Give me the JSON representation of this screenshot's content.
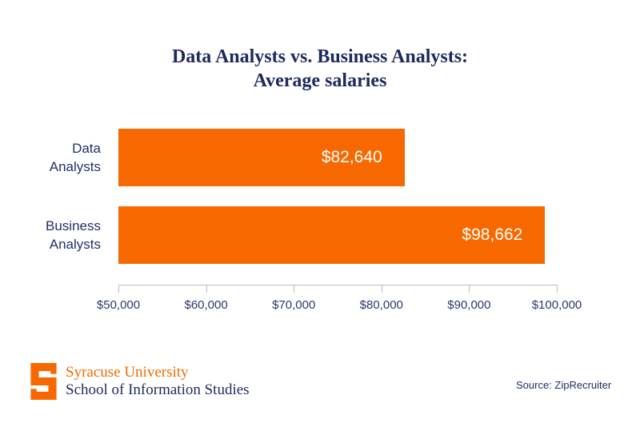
{
  "title": {
    "line1": "Data Analysts vs. Business Analysts:",
    "line2": "Average salaries"
  },
  "chart_data": {
    "type": "bar",
    "orientation": "horizontal",
    "title": "Data Analysts vs. Business Analysts: Average salaries",
    "categories": [
      "Data Analysts",
      "Business Analysts"
    ],
    "category_lines": [
      [
        "Data",
        "Analysts"
      ],
      [
        "Business",
        "Analysts"
      ]
    ],
    "values": [
      82640,
      98662
    ],
    "value_labels": [
      "$82,640",
      "$98,662"
    ],
    "xlabel": "",
    "ylabel": "",
    "xlim": [
      50000,
      100000
    ],
    "x_tick_labels": [
      "$50,000",
      "$60,000",
      "$70,000",
      "$80,000",
      "$90,000",
      "$100,000"
    ],
    "grid": false,
    "legend": false,
    "bar_color": "#f76900",
    "value_label_color": "#ffffff"
  },
  "footer": {
    "logo_letter": "S",
    "org_line1": "Syracuse University",
    "org_line2": "School of Information Studies",
    "source": "Source: ZipRecruiter"
  },
  "colors": {
    "orange": "#f76900",
    "navy": "#1e2a5e",
    "axis_gray": "#b7bcc4",
    "background": "#ffffff"
  }
}
